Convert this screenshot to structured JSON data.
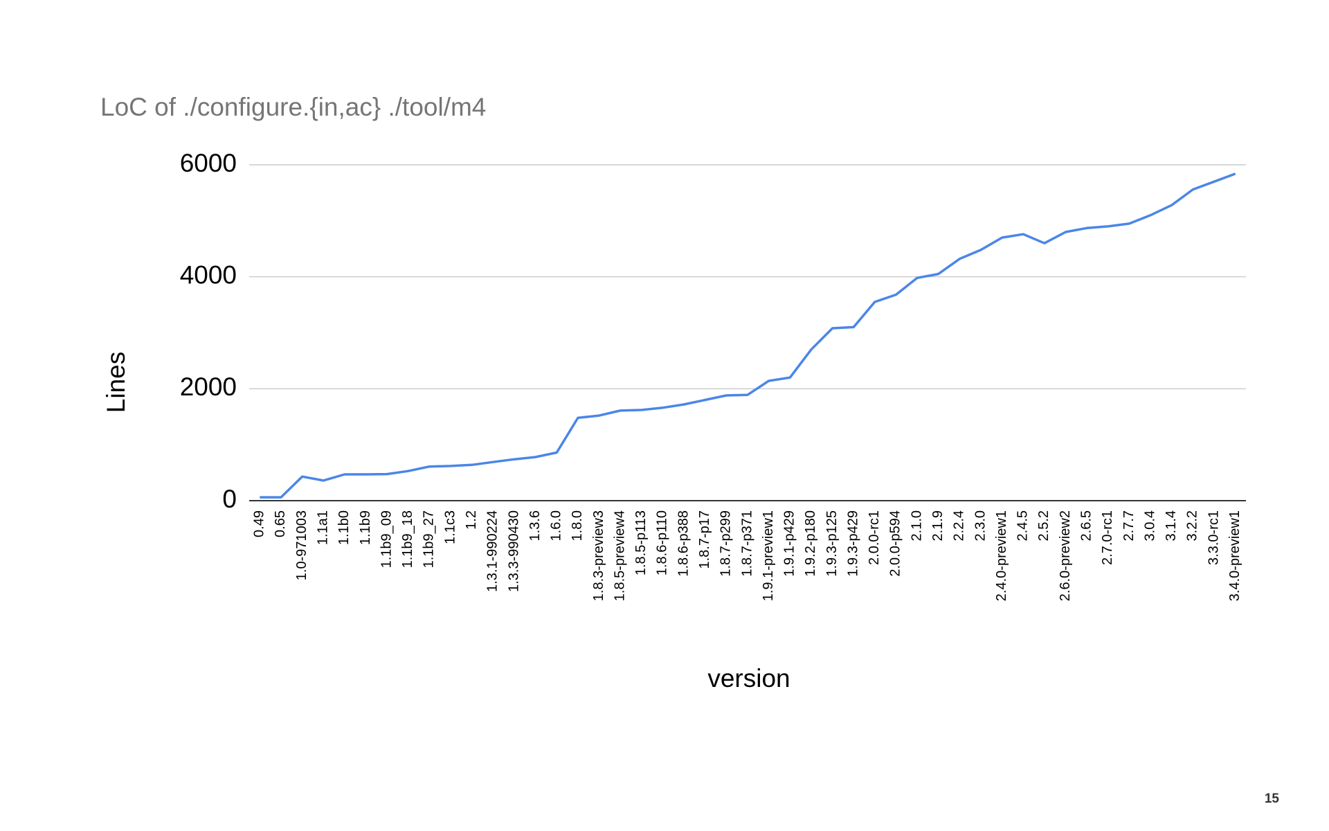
{
  "chart_data": {
    "type": "line",
    "title": "LoC of ./configure.{in,ac} ./tool/m4",
    "x_label": "version",
    "y_label": "Lines",
    "categories": [
      "0.49",
      "0.65",
      "1.0-971003",
      "1.1a1",
      "1.1b0",
      "1.1b9",
      "1.1b9_09",
      "1.1b9_18",
      "1.1b9_27",
      "1.1c3",
      "1.2",
      "1.3.1-990224",
      "1.3.3-990430",
      "1.3.6",
      "1.6.0",
      "1.8.0",
      "1.8.3-preview3",
      "1.8.5-preview4",
      "1.8.5-p113",
      "1.8.6-p110",
      "1.8.6-p388",
      "1.8.7-p17",
      "1.8.7-p299",
      "1.8.7-p371",
      "1.9.1-preview1",
      "1.9.1-p429",
      "1.9.2-p180",
      "1.9.3-p125",
      "1.9.3-p429",
      "2.0.0-rc1",
      "2.0.0-p594",
      "2.1.0",
      "2.1.9",
      "2.2.4",
      "2.3.0",
      "2.4.0-preview1",
      "2.4.5",
      "2.5.2",
      "2.6.0-preview2",
      "2.6.5",
      "2.7.0-rc1",
      "2.7.7",
      "3.0.4",
      "3.1.4",
      "3.2.2",
      "3.3.0-rc1",
      "3.4.0-preview1"
    ],
    "values": [
      60,
      60,
      430,
      360,
      470,
      470,
      475,
      530,
      610,
      620,
      640,
      690,
      740,
      780,
      860,
      1480,
      1520,
      1610,
      1620,
      1660,
      1720,
      1800,
      1880,
      1890,
      2140,
      2200,
      2700,
      3080,
      3100,
      3550,
      3680,
      3980,
      4050,
      4320,
      4480,
      4700,
      4760,
      4600,
      4800,
      4870,
      4900,
      4950,
      5100,
      5280,
      5560,
      5700,
      5840
    ],
    "color": "#4a86e8",
    "ylim": [
      0,
      6000
    ],
    "yticks": [
      0,
      2000,
      4000,
      6000
    ],
    "grid": true
  },
  "page_number": "15"
}
